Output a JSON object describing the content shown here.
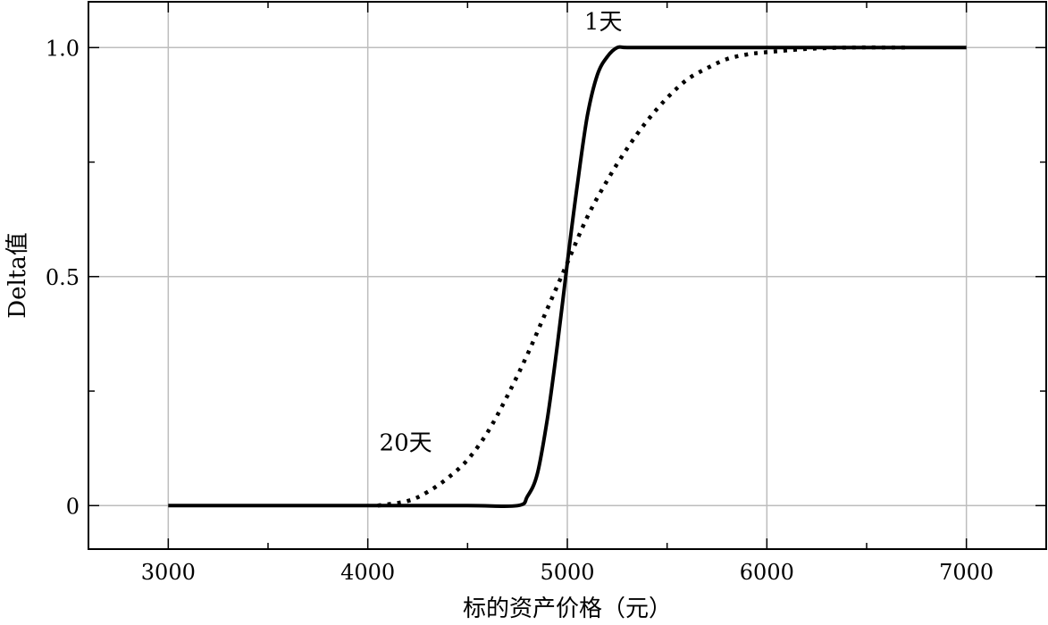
{
  "chart_data": {
    "type": "line",
    "title": "",
    "xlabel": "标的资产价格（元）",
    "ylabel": "Delta值",
    "xlim": [
      2600,
      7400
    ],
    "ylim": [
      -0.095,
      1.1
    ],
    "xticks": [
      3000,
      4000,
      5000,
      6000,
      7000
    ],
    "xtick_labels": [
      "3000",
      "4000",
      "5000",
      "6000",
      "7000"
    ],
    "yticks": [
      0,
      0.5,
      1.0
    ],
    "ytick_labels": [
      "0",
      "0.5",
      "1.0"
    ],
    "grid": true,
    "series": [
      {
        "name": "1天",
        "style": "solid",
        "color": "#000000",
        "x": [
          3000,
          3500,
          4000,
          4500,
          4750,
          4800,
          4850,
          4900,
          4950,
          5000,
          5050,
          5100,
          5150,
          5200,
          5250,
          5300,
          5500,
          6000,
          6500,
          7000
        ],
        "y": [
          0,
          0,
          0,
          0,
          0,
          0.02,
          0.07,
          0.19,
          0.35,
          0.53,
          0.7,
          0.85,
          0.94,
          0.98,
          1.0,
          1.0,
          1.0,
          1.0,
          1.0,
          1.0
        ]
      },
      {
        "name": "20天",
        "style": "dotted",
        "color": "#000000",
        "x": [
          4050,
          4200,
          4300,
          4400,
          4500,
          4600,
          4700,
          4800,
          4900,
          5000,
          5100,
          5200,
          5300,
          5400,
          5500,
          5600,
          5700,
          5800,
          5900,
          6000,
          6200,
          6400,
          6700
        ],
        "y": [
          0,
          0.01,
          0.03,
          0.06,
          0.1,
          0.16,
          0.24,
          0.33,
          0.43,
          0.53,
          0.63,
          0.71,
          0.78,
          0.84,
          0.89,
          0.93,
          0.955,
          0.975,
          0.985,
          0.99,
          0.997,
          1.0,
          1.0
        ]
      }
    ],
    "annotations": [
      {
        "text": "1天",
        "x": 5180,
        "y": 1.04
      },
      {
        "text": "20天",
        "x": 4190,
        "y": 0.12
      }
    ]
  }
}
